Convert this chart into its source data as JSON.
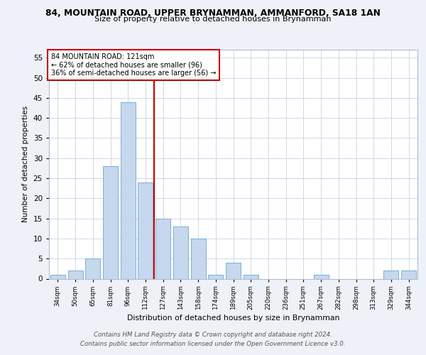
{
  "title_line1": "84, MOUNTAIN ROAD, UPPER BRYNAMMAN, AMMANFORD, SA18 1AN",
  "title_line2": "Size of property relative to detached houses in Brynamman",
  "xlabel": "Distribution of detached houses by size in Brynamman",
  "ylabel": "Number of detached properties",
  "categories": [
    "34sqm",
    "50sqm",
    "65sqm",
    "81sqm",
    "96sqm",
    "112sqm",
    "127sqm",
    "143sqm",
    "158sqm",
    "174sqm",
    "189sqm",
    "205sqm",
    "220sqm",
    "236sqm",
    "251sqm",
    "267sqm",
    "282sqm",
    "298sqm",
    "313sqm",
    "329sqm",
    "344sqm"
  ],
  "values": [
    1,
    2,
    5,
    28,
    44,
    24,
    15,
    13,
    10,
    1,
    4,
    1,
    0,
    0,
    0,
    1,
    0,
    0,
    0,
    2,
    2
  ],
  "bar_color": "#c5d8ed",
  "bar_edge_color": "#7bafd4",
  "vline_index": 5,
  "vline_color": "#cc0000",
  "annotation_title": "84 MOUNTAIN ROAD: 121sqm",
  "annotation_line1": "← 62% of detached houses are smaller (96)",
  "annotation_line2": "36% of semi-detached houses are larger (56) →",
  "annotation_box_color": "#cc0000",
  "ylim": [
    0,
    57
  ],
  "yticks": [
    0,
    5,
    10,
    15,
    20,
    25,
    30,
    35,
    40,
    45,
    50,
    55
  ],
  "footer_line1": "Contains HM Land Registry data © Crown copyright and database right 2024.",
  "footer_line2": "Contains public sector information licensed under the Open Government Licence v3.0.",
  "background_color": "#eef2f8",
  "plot_bg_color": "#ffffff",
  "grid_color": "#d0d8e8"
}
